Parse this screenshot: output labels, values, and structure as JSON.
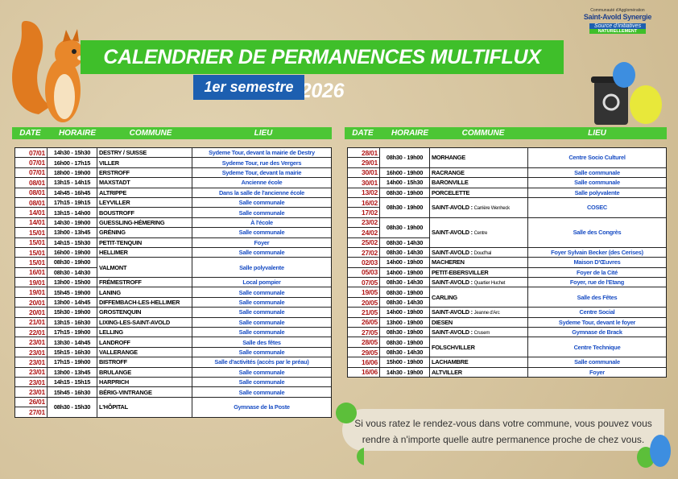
{
  "header": {
    "title": "CALENDRIER DE PERMANENCES MULTIFLUX 2026",
    "subtitle": "1er semestre"
  },
  "logo": {
    "org": "Communauté d'Agglomération",
    "name": "Saint-Avold Synergie",
    "tagline": "Source d'initiatives",
    "motto": "NATURELLEMENT"
  },
  "columns": [
    "DATE",
    "HORAIRE",
    "COMMUNE",
    "LIEU"
  ],
  "tables": [
    {
      "groups": [
        {
          "dates": [
            "07/01"
          ],
          "horaires": [
            "14h30 - 15h30"
          ],
          "commune": "DESTRY / SUISSE",
          "lieu": "Sydeme Tour, devant la mairie de Destry"
        },
        {
          "dates": [
            "07/01"
          ],
          "horaires": [
            "16h00 - 17h15"
          ],
          "commune": "VILLER",
          "lieu": "Sydeme Tour, rue des Vergers"
        },
        {
          "dates": [
            "07/01"
          ],
          "horaires": [
            "18h00 - 19h00"
          ],
          "commune": "ERSTROFF",
          "lieu": "Sydeme Tour, devant la mairie"
        },
        {
          "dates": [
            "08/01"
          ],
          "horaires": [
            "13h15 - 14h15"
          ],
          "commune": "MAXSTADT",
          "lieu": "Ancienne école"
        },
        {
          "dates": [
            "08/01"
          ],
          "horaires": [
            "14h45 - 16h45"
          ],
          "commune": "ALTRIPPE",
          "lieu": "Dans la salle de l'ancienne école"
        },
        {
          "dates": [
            "08/01"
          ],
          "horaires": [
            "17h15 - 19h15"
          ],
          "commune": "LEYVILLER",
          "lieu": "Salle communale"
        },
        {
          "dates": [
            "14/01"
          ],
          "horaires": [
            "13h15 - 14h00"
          ],
          "commune": "BOUSTROFF",
          "lieu": "Salle communale"
        },
        {
          "dates": [
            "14/01"
          ],
          "horaires": [
            "14h30 - 19h00"
          ],
          "commune": "GUESSLING-HÉMERING",
          "lieu": "À l'école"
        },
        {
          "dates": [
            "15/01"
          ],
          "horaires": [
            "13h00 - 13h45"
          ],
          "commune": "GRÉNING",
          "lieu": "Salle communale"
        },
        {
          "dates": [
            "15/01"
          ],
          "horaires": [
            "14h15 - 15h30"
          ],
          "commune": "PETIT-TENQUIN",
          "lieu": "Foyer"
        },
        {
          "dates": [
            "15/01"
          ],
          "horaires": [
            "16h00 - 19h00"
          ],
          "commune": "HELLIMER",
          "lieu": "Salle communale"
        },
        {
          "dates": [
            "15/01",
            "16/01"
          ],
          "horaires": [
            "08h30 - 19h00",
            "08h30 - 14h30"
          ],
          "commune": "VALMONT",
          "lieu": "Salle polyvalente"
        },
        {
          "dates": [
            "19/01"
          ],
          "horaires": [
            "13h00 - 15h00"
          ],
          "commune": "FRÉMESTROFF",
          "lieu": "Local pompier"
        },
        {
          "dates": [
            "19/01"
          ],
          "horaires": [
            "15h45 - 19h00"
          ],
          "commune": "LANING",
          "lieu": "Salle communale"
        },
        {
          "dates": [
            "20/01"
          ],
          "horaires": [
            "13h00 - 14h45"
          ],
          "commune": "DIFFEMBACH-LES-HELLIMER",
          "lieu": "Salle communale"
        },
        {
          "dates": [
            "20/01"
          ],
          "horaires": [
            "15h30 - 19h00"
          ],
          "commune": "GROSTENQUIN",
          "lieu": "Salle communale"
        },
        {
          "dates": [
            "21/01"
          ],
          "horaires": [
            "13h15 - 16h30"
          ],
          "commune": "LIXING-LES-SAINT-AVOLD",
          "lieu": "Salle communale"
        },
        {
          "dates": [
            "22/01"
          ],
          "horaires": [
            "17h15 - 19h00"
          ],
          "commune": "LELLING",
          "lieu": "Salle communale"
        },
        {
          "dates": [
            "23/01"
          ],
          "horaires": [
            "13h30 - 14h45"
          ],
          "commune": "LANDROFF",
          "lieu": "Salle des fêtes"
        },
        {
          "dates": [
            "23/01"
          ],
          "horaires": [
            "15h15 - 16h30"
          ],
          "commune": "VALLERANGE",
          "lieu": "Salle communale"
        },
        {
          "dates": [
            "23/01"
          ],
          "horaires": [
            "17h15 - 19h00"
          ],
          "commune": "BISTROFF",
          "lieu": "Salle d'activités (accès par le préau)"
        },
        {
          "dates": [
            "23/01"
          ],
          "horaires": [
            "13h00 - 13h45"
          ],
          "commune": "BRULANGE",
          "lieu": "Salle communale"
        },
        {
          "dates": [
            "23/01"
          ],
          "horaires": [
            "14h15 - 15h15"
          ],
          "commune": "HARPRICH",
          "lieu": "Salle communale"
        },
        {
          "dates": [
            "23/01"
          ],
          "horaires": [
            "15h45 - 16h30"
          ],
          "commune": "BÉRIG-VINTRANGE",
          "lieu": "Salle communale"
        },
        {
          "dates": [
            "26/01",
            "27/01"
          ],
          "horaires": [
            "08h30 - 15h30",
            null
          ],
          "commune": "L'HÔPITAL",
          "lieu": "Gymnase de la Poste"
        }
      ]
    },
    {
      "groups": [
        {
          "dates": [
            "28/01",
            "29/01"
          ],
          "horaires": [
            "08h30 - 19h00",
            null
          ],
          "commune": "MORHANGE",
          "lieu": "Centre Socio Culturel"
        },
        {
          "dates": [
            "30/01"
          ],
          "horaires": [
            "16h00 - 19h00"
          ],
          "commune": "RACRANGE",
          "lieu": "Salle communale"
        },
        {
          "dates": [
            "30/01"
          ],
          "horaires": [
            "14h00 - 15h30"
          ],
          "commune": "BARONVILLE",
          "lieu": "Salle communale"
        },
        {
          "dates": [
            "13/02"
          ],
          "horaires": [
            "08h30 - 19h00"
          ],
          "commune": "PORCELETTE",
          "lieu": "Salle polyvalente"
        },
        {
          "dates": [
            "16/02",
            "17/02"
          ],
          "horaires": [
            "08h30 - 19h00",
            null
          ],
          "commune": "SAINT-AVOLD :",
          "quartier": "Carrière Wenheck",
          "lieu": "COSEC"
        },
        {
          "dates": [
            "23/02",
            "24/02",
            "25/02"
          ],
          "horaires": [
            "08h30 - 19h00",
            null,
            "08h30 - 14h30"
          ],
          "commune": "SAINT-AVOLD :",
          "quartier": "Centre",
          "lieu": "Salle des Congrès"
        },
        {
          "dates": [
            "27/02"
          ],
          "horaires": [
            "08h30 - 14h30"
          ],
          "commune": "SAINT-AVOLD :",
          "quartier": "Doud'hal",
          "lieu": "Foyer Sylvain Becker (des Cerises)"
        },
        {
          "dates": [
            "02/03"
          ],
          "horaires": [
            "14h00 - 19h00"
          ],
          "commune": "MACHEREN",
          "lieu": "Maison D'Œuvres"
        },
        {
          "dates": [
            "05/03"
          ],
          "horaires": [
            "14h00 - 19h00"
          ],
          "commune": "PETIT-EBERSVILLER",
          "lieu": "Foyer de la Cité"
        },
        {
          "dates": [
            "07/05"
          ],
          "horaires": [
            "08h30 - 14h30"
          ],
          "commune": "SAINT-AVOLD :",
          "quartier": "Quartier Huchet",
          "lieu": "Foyer, rue de l'Etang"
        },
        {
          "dates": [
            "19/05",
            "20/05"
          ],
          "horaires": [
            "08h30 - 19h00",
            "08h30 - 14h30"
          ],
          "commune": "CARLING",
          "lieu": "Salle des Fêtes"
        },
        {
          "dates": [
            "21/05"
          ],
          "horaires": [
            "14h00 - 19h00"
          ],
          "commune": "SAINT-AVOLD :",
          "quartier": "Jeanne d'Arc",
          "lieu": "Centre Social"
        },
        {
          "dates": [
            "26/05"
          ],
          "horaires": [
            "13h00 - 19h00"
          ],
          "commune": "DIESEN",
          "lieu": "Sydeme Tour, devant le foyer"
        },
        {
          "dates": [
            "27/05"
          ],
          "horaires": [
            "08h30 - 19h00"
          ],
          "commune": "SAINT-AVOLD :",
          "quartier": "Crusem",
          "lieu": "Gymnase de Brack"
        },
        {
          "dates": [
            "28/05",
            "29/05"
          ],
          "horaires": [
            "08h30 - 19h00",
            "08h30 - 14h30"
          ],
          "commune": "FOLSCHVILLER",
          "lieu": "Centre Technique"
        },
        {
          "dates": [
            "16/06"
          ],
          "horaires": [
            "15h00 - 19h00"
          ],
          "commune": "LACHAMBRE",
          "lieu": "Salle communale"
        },
        {
          "dates": [
            "16/06"
          ],
          "horaires": [
            "14h30 - 19h00"
          ],
          "commune": "ALTVILLER",
          "lieu": "Foyer"
        }
      ]
    }
  ],
  "note": "Si vous ratez le rendez-vous dans votre commune, vous pouvez vous rendre à n'importe quelle autre permanence proche de chez vous."
}
